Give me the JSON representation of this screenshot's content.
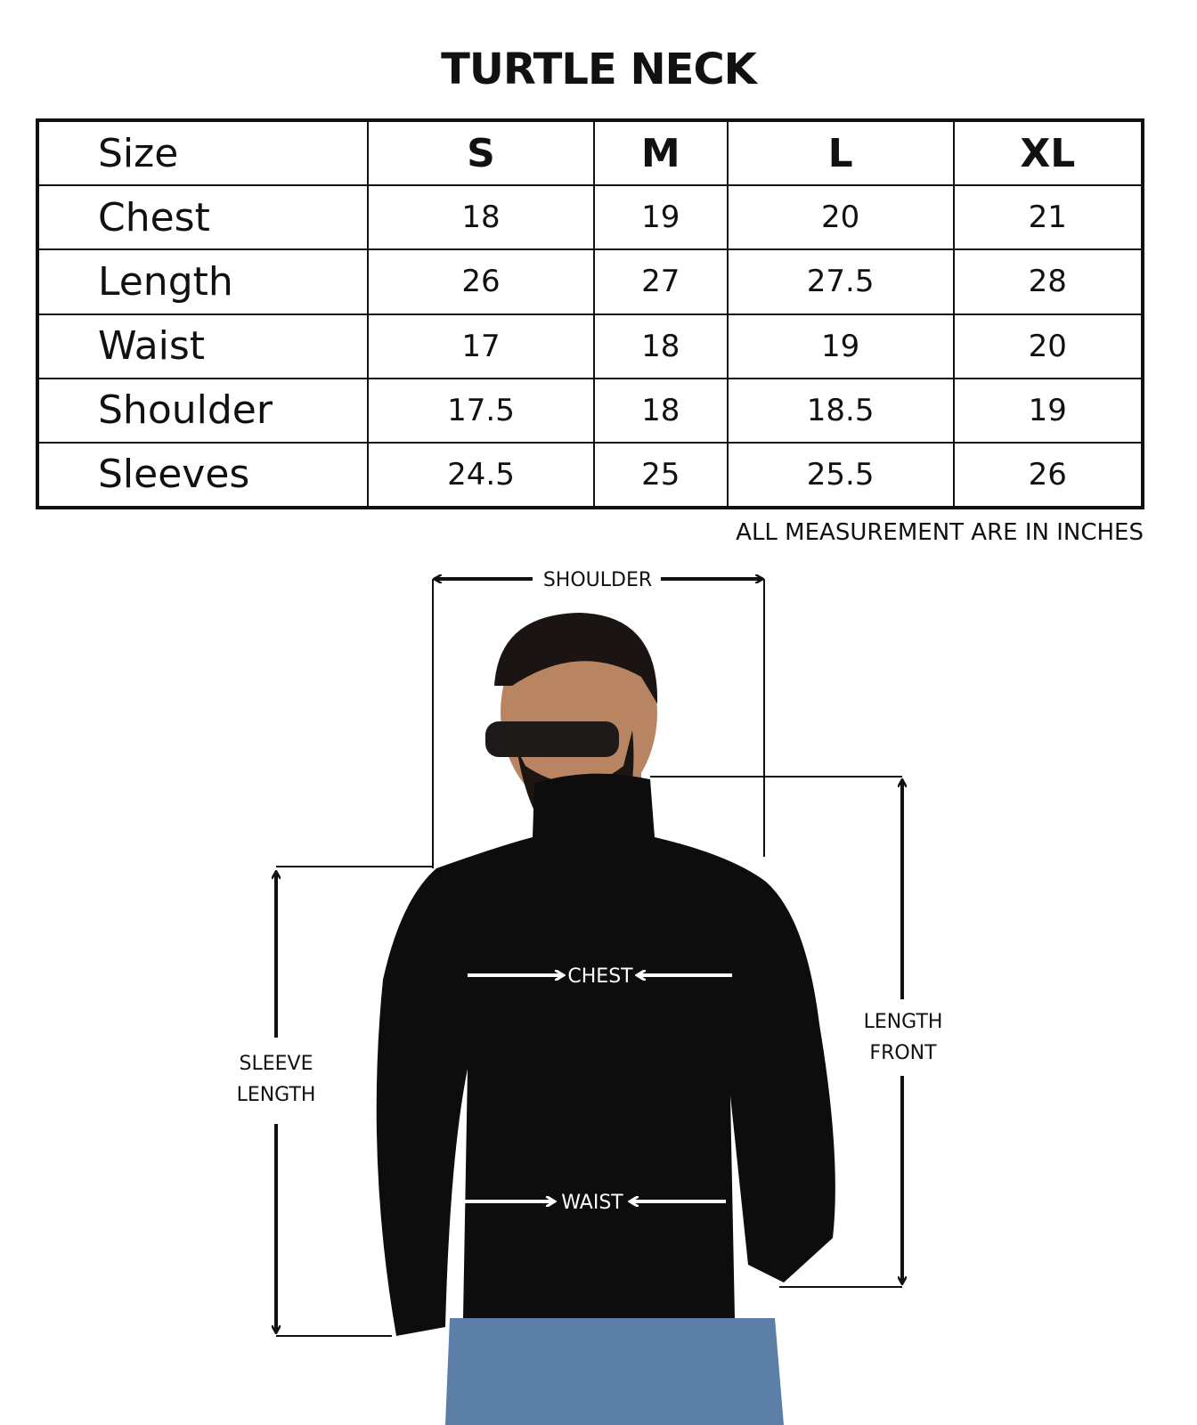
{
  "title": "TURTLE NECK",
  "table": {
    "header": [
      "Size",
      "S",
      "M",
      "L",
      "XL"
    ],
    "rows": [
      {
        "label": "Chest",
        "values": [
          "18",
          "19",
          "20",
          "21"
        ]
      },
      {
        "label": "Length",
        "values": [
          "26",
          "27",
          "27.5",
          "28"
        ]
      },
      {
        "label": "Waist",
        "values": [
          "17",
          "18",
          "19",
          "20"
        ]
      },
      {
        "label": "Shoulder",
        "values": [
          "17.5",
          "18",
          "18.5",
          "19"
        ]
      },
      {
        "label": "Sleeves",
        "values": [
          "24.5",
          "25",
          "25.5",
          "26"
        ]
      }
    ]
  },
  "note": "ALL MEASUREMENT ARE IN INCHES",
  "diagram": {
    "shoulder": "SHOULDER",
    "chest": "CHEST",
    "waist": "WAIST",
    "length_front": [
      "LENGTH",
      "FRONT"
    ],
    "sleeve_length": [
      "SLEEVE",
      "LENGTH"
    ]
  },
  "colors": {
    "sweater": "#0d0d0d",
    "jeans": "#5b7fa6",
    "skin": "#b88462"
  }
}
